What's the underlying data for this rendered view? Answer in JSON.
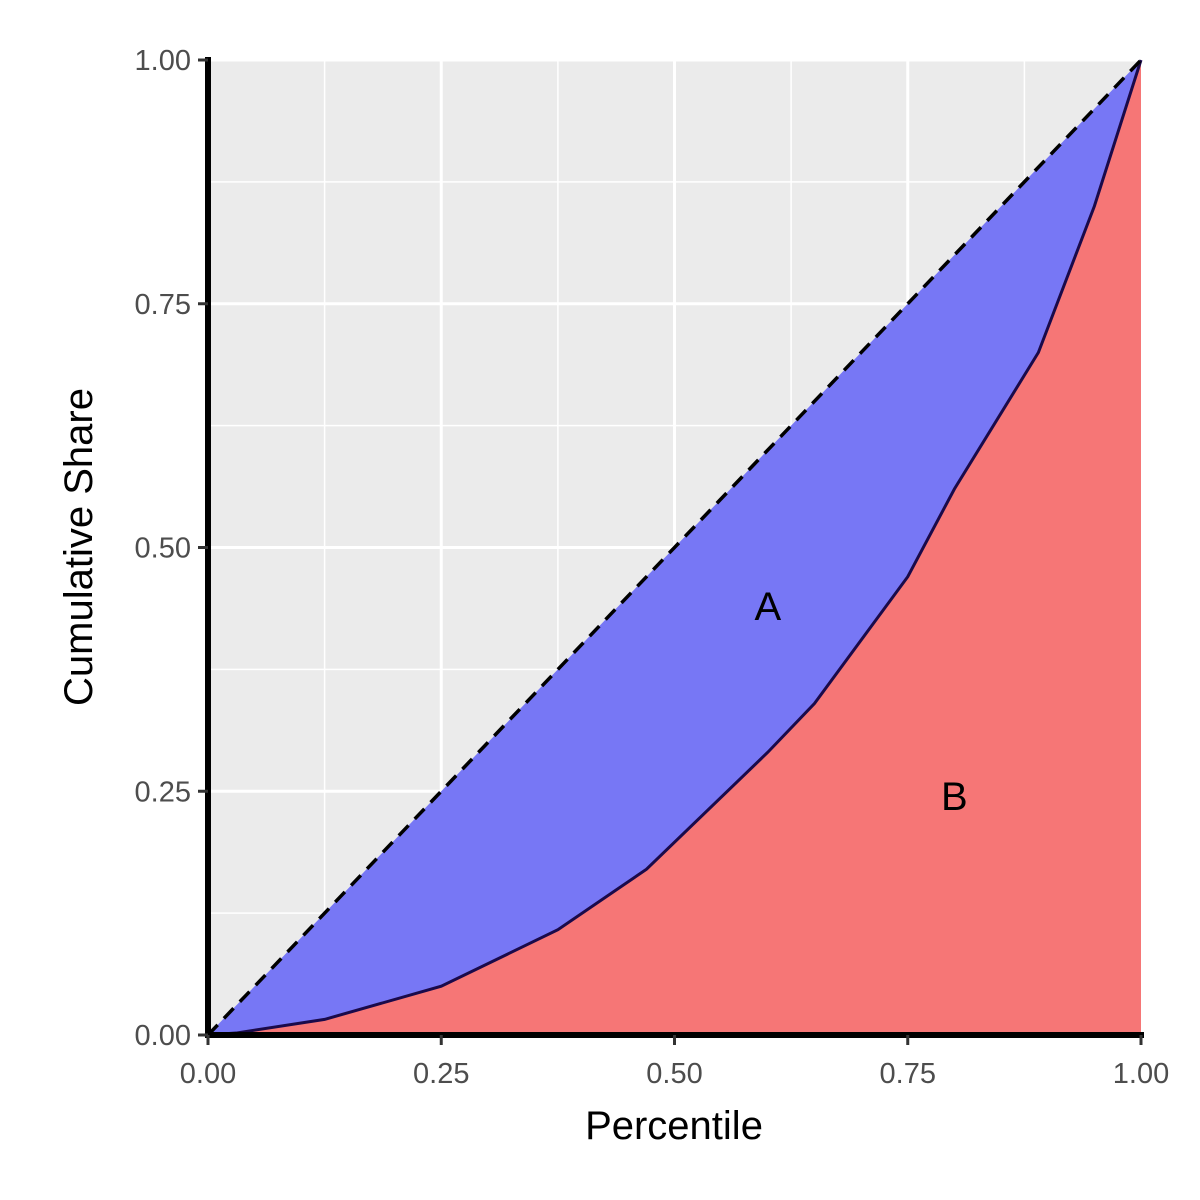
{
  "chart_data": {
    "type": "area",
    "xlabel": "Percentile",
    "ylabel": "Cumulative Share",
    "xlim": [
      0,
      1
    ],
    "ylim": [
      0,
      1
    ],
    "x_ticks": [
      "0.00",
      "0.25",
      "0.50",
      "0.75",
      "1.00"
    ],
    "y_ticks": [
      "0.00",
      "0.25",
      "0.50",
      "0.75",
      "1.00"
    ],
    "grid": true,
    "equality_line": {
      "x": [
        0,
        1
      ],
      "y": [
        0,
        1
      ],
      "style": "dashed"
    },
    "lorenz_curve": {
      "x": [
        0,
        0.03,
        0.125,
        0.25,
        0.375,
        0.47,
        0.6,
        0.65,
        0.75,
        0.8,
        0.89,
        0.95,
        1.0
      ],
      "y": [
        0,
        0.002,
        0.016,
        0.05,
        0.108,
        0.17,
        0.29,
        0.34,
        0.47,
        0.56,
        0.7,
        0.85,
        1.0
      ]
    },
    "regions": [
      {
        "label": "A",
        "color": "#7777f5",
        "x": 0.6,
        "y": 0.44
      },
      {
        "label": "B",
        "color": "#f67676",
        "x": 0.8,
        "y": 0.245
      }
    ],
    "panel_color": "#ebebeb"
  }
}
